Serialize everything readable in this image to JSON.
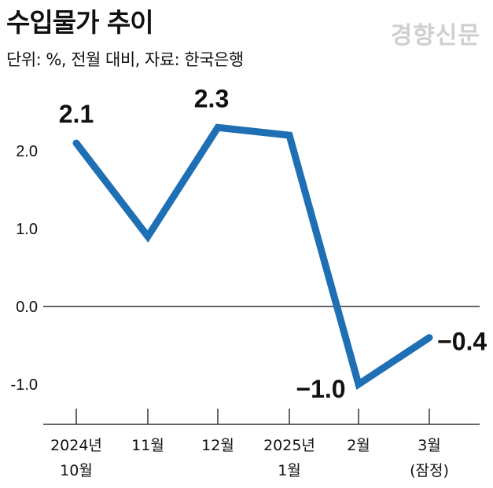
{
  "header": {
    "title": "수입물가 추이",
    "subtitle": "단위: %, 전월 대비, 자료: 한국은행",
    "watermark": "경향신문"
  },
  "chart_data": {
    "type": "line",
    "title": "수입물가 추이",
    "subtitle": "단위: %, 전월 대비, 자료: 한국은행",
    "x_labels": [
      [
        "2024년",
        "10월"
      ],
      [
        "11월"
      ],
      [
        "12월"
      ],
      [
        "2025년",
        "1월"
      ],
      [
        "2월"
      ],
      [
        "3월",
        "(잠정)"
      ]
    ],
    "series": [
      {
        "values": [
          2.1,
          0.9,
          2.3,
          2.2,
          -1.0,
          -0.4
        ],
        "color": "#1f6fb5"
      }
    ],
    "data_labels": [
      {
        "index": 0,
        "text": "2.1"
      },
      {
        "index": 2,
        "text": "2.3"
      },
      {
        "index": 4,
        "text": "−1.0"
      },
      {
        "index": 5,
        "text": "−0.4"
      }
    ],
    "y_ticks": [
      {
        "value": 2.0,
        "label": "2.0"
      },
      {
        "value": 1.0,
        "label": "1.0"
      },
      {
        "value": 0.0,
        "label": "0.0"
      },
      {
        "value": -1.0,
        "label": "-1.0"
      }
    ],
    "ylim": [
      -1.5,
      2.7
    ],
    "zero_line": true,
    "grid": false,
    "line_color": "#1f6fb5",
    "axis_color": "#333333"
  }
}
